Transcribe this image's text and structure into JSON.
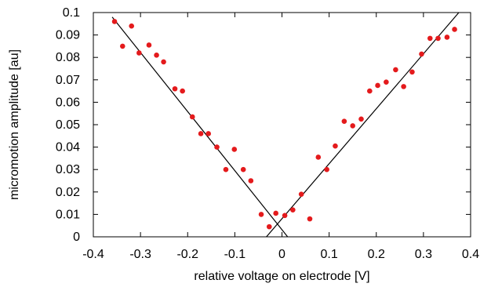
{
  "chart_data": {
    "type": "scatter",
    "title": "",
    "xlabel": "relative voltage on electrode [V]",
    "ylabel": "micromotion amplitude [au]",
    "xlim": [
      -0.4,
      0.4
    ],
    "ylim": [
      0,
      0.1
    ],
    "grid": false,
    "x_ticks": [
      -0.4,
      -0.3,
      -0.2,
      -0.1,
      0,
      0.1,
      0.2,
      0.3,
      0.4
    ],
    "y_ticks": [
      0,
      0.01,
      0.02,
      0.03,
      0.04,
      0.05,
      0.06,
      0.07,
      0.08,
      0.09,
      0.1
    ],
    "x_tick_labels": [
      "-0.4",
      "-0.3",
      "-0.2",
      "-0.1",
      "0",
      "0.1",
      "0.2",
      "0.3",
      "0.4"
    ],
    "y_tick_labels": [
      "0",
      "0.01",
      "0.02",
      "0.03",
      "0.04",
      "0.05",
      "0.06",
      "0.07",
      "0.08",
      "0.09",
      "0.1"
    ],
    "points": {
      "x": [
        -0.355,
        -0.338,
        -0.319,
        -0.303,
        -0.282,
        -0.266,
        -0.251,
        -0.227,
        -0.211,
        -0.19,
        -0.172,
        -0.156,
        -0.138,
        -0.119,
        -0.101,
        -0.082,
        -0.066,
        -0.044,
        -0.027,
        -0.013,
        0.006,
        0.023,
        0.041,
        0.059,
        0.077,
        0.095,
        0.113,
        0.132,
        0.15,
        0.168,
        0.186,
        0.203,
        0.221,
        0.241,
        0.258,
        0.276,
        0.296,
        0.314,
        0.331,
        0.35,
        0.366
      ],
      "y": [
        0.096,
        0.085,
        0.094,
        0.082,
        0.0855,
        0.081,
        0.078,
        0.066,
        0.065,
        0.0535,
        0.046,
        0.046,
        0.04,
        0.03,
        0.039,
        0.03,
        0.025,
        0.01,
        0.0045,
        0.0105,
        0.0095,
        0.012,
        0.019,
        0.008,
        0.0355,
        0.03,
        0.0405,
        0.0515,
        0.0495,
        0.0525,
        0.065,
        0.0675,
        0.069,
        0.0745,
        0.067,
        0.0735,
        0.0815,
        0.0885,
        0.0885,
        0.089,
        0.0925
      ]
    },
    "fit_lines": [
      {
        "x": [
          -0.36,
          0.012
        ],
        "y": [
          0.098,
          0.0
        ]
      },
      {
        "x": [
          -0.033,
          0.375
        ],
        "y": [
          0.0,
          0.1
        ]
      }
    ],
    "colors": {
      "points": "#e41a1c",
      "lines": "#000000",
      "axes": "#000000"
    }
  }
}
